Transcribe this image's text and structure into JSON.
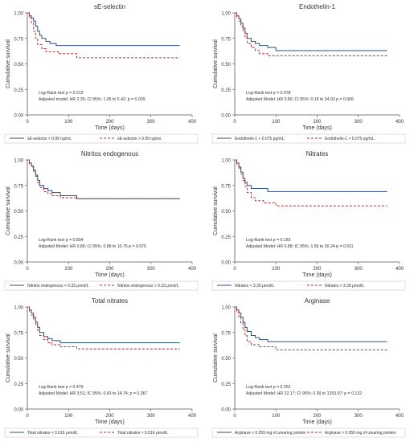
{
  "colors": {
    "series_a": "#2f4f7f",
    "series_b": "#b03030",
    "axis": "#555555",
    "text": "#333333"
  },
  "chart_data": [
    {
      "type": "line",
      "title": "sE-selectin",
      "xlabel": "Time (days)",
      "ylabel": "Cumulative survival",
      "xlim": [
        0,
        400
      ],
      "ylim": [
        0,
        1
      ],
      "xticks": [
        "0",
        "100",
        "200",
        "300",
        "400"
      ],
      "yticks": [
        "0.00",
        "0.25",
        "0.50",
        "0.75",
        "1.00"
      ],
      "annotations": [
        "Log-Rank test p = 0.213",
        "Adjusted model: HR 2.35; CI 95%: 1.05 to 5.42; p = 0.039"
      ],
      "series": [
        {
          "name": "sE-selectin < 0.99 ng/mL",
          "style": "solid",
          "x": [
            0,
            5,
            10,
            15,
            20,
            25,
            30,
            35,
            45,
            55,
            70,
            370
          ],
          "y": [
            1.0,
            0.97,
            0.95,
            0.92,
            0.87,
            0.82,
            0.78,
            0.75,
            0.72,
            0.7,
            0.68,
            0.68
          ]
        },
        {
          "name": "sE-selectin > 0.99 ng/mL",
          "style": "dashed",
          "x": [
            0,
            5,
            10,
            15,
            20,
            25,
            35,
            45,
            75,
            120,
            370
          ],
          "y": [
            1.0,
            0.95,
            0.9,
            0.82,
            0.75,
            0.69,
            0.65,
            0.62,
            0.6,
            0.56,
            0.56
          ]
        }
      ]
    },
    {
      "type": "line",
      "title": "Endothelin-1",
      "xlabel": "Time (days)",
      "ylabel": "Cumulative survival",
      "xlim": [
        0,
        400
      ],
      "ylim": [
        0,
        1
      ],
      "xticks": [
        "0",
        "100",
        "200",
        "300",
        "400"
      ],
      "yticks": [
        "0.00",
        "0.25",
        "0.50",
        "0.75",
        "1.00"
      ],
      "annotations": [
        "Log-Rank test p = 0.578",
        "Adjusted Model: HR 0.80; CI 95%: 0.18 to 34.93 p = 0.906"
      ],
      "series": [
        {
          "name": "Endothelin-1 < 0.075 pg/mL",
          "style": "solid",
          "x": [
            0,
            5,
            10,
            15,
            20,
            25,
            30,
            40,
            50,
            60,
            80,
            100,
            370
          ],
          "y": [
            1.0,
            0.97,
            0.94,
            0.9,
            0.85,
            0.8,
            0.75,
            0.72,
            0.7,
            0.68,
            0.66,
            0.63,
            0.63
          ]
        },
        {
          "name": "Endothelin-1 > 0.075 pg/mL",
          "style": "dashed",
          "x": [
            0,
            5,
            10,
            15,
            20,
            25,
            30,
            40,
            50,
            60,
            80,
            370
          ],
          "y": [
            1.0,
            0.96,
            0.92,
            0.87,
            0.82,
            0.76,
            0.7,
            0.66,
            0.63,
            0.6,
            0.58,
            0.58
          ]
        }
      ]
    },
    {
      "type": "line",
      "title": "Nitritos endogenous",
      "xlabel": "Time (days)",
      "ylabel": "Cumulative survival",
      "xlim": [
        0,
        400
      ],
      "ylim": [
        0,
        1
      ],
      "xticks": [
        "0",
        "100",
        "200",
        "300",
        "400"
      ],
      "yticks": [
        "0.00",
        "0.25",
        "0.50",
        "0.75",
        "1.00"
      ],
      "annotations": [
        "Log-Rank test p = 0.804",
        "Adjusted Model: HR 0.89; CI 95%: 0.88 to 10.75 p = 0.975"
      ],
      "series": [
        {
          "name": "Nitritos endogenous < 0.33 μmol/L",
          "style": "solid",
          "x": [
            0,
            5,
            10,
            15,
            20,
            25,
            30,
            40,
            50,
            60,
            80,
            120,
            370
          ],
          "y": [
            1.0,
            0.97,
            0.94,
            0.9,
            0.85,
            0.8,
            0.75,
            0.72,
            0.7,
            0.68,
            0.65,
            0.62,
            0.62
          ]
        },
        {
          "name": "Nitritos endogenous > 0.33 μmol/L",
          "style": "dashed",
          "x": [
            0,
            5,
            10,
            15,
            20,
            25,
            30,
            40,
            50,
            60,
            80,
            120,
            370
          ],
          "y": [
            1.0,
            0.96,
            0.93,
            0.89,
            0.84,
            0.78,
            0.73,
            0.69,
            0.67,
            0.65,
            0.63,
            0.62,
            0.62
          ]
        }
      ]
    },
    {
      "type": "line",
      "title": "Nitrates",
      "xlabel": "Time (days)",
      "ylabel": "Cumulative survival",
      "xlim": [
        0,
        400
      ],
      "ylim": [
        0,
        1
      ],
      "xticks": [
        "0",
        "100",
        "200",
        "300",
        "400"
      ],
      "yticks": [
        "0.00",
        "0.25",
        "0.50",
        "0.75",
        "1.00"
      ],
      "annotations": [
        "Log-Rank test p = 0.183",
        "Adjusted Model: HR 6.88; IC 95%: 1.56 to 30.24 p = 0.011"
      ],
      "series": [
        {
          "name": "Nitrates < 3.39 μmol/L",
          "style": "solid",
          "x": [
            0,
            5,
            10,
            15,
            20,
            25,
            30,
            40,
            80,
            370
          ],
          "y": [
            1.0,
            0.97,
            0.93,
            0.88,
            0.82,
            0.78,
            0.75,
            0.72,
            0.69,
            0.69
          ]
        },
        {
          "name": "Nitrates > 3.39 μmol/L",
          "style": "dashed",
          "x": [
            0,
            5,
            10,
            15,
            20,
            25,
            30,
            40,
            50,
            70,
            100,
            370
          ],
          "y": [
            1.0,
            0.96,
            0.92,
            0.86,
            0.8,
            0.74,
            0.68,
            0.63,
            0.6,
            0.58,
            0.55,
            0.55
          ]
        }
      ]
    },
    {
      "type": "line",
      "title": "Total nitrates",
      "xlabel": "Time (days)",
      "ylabel": "Cumulative survival",
      "xlim": [
        0,
        400
      ],
      "ylim": [
        0,
        1
      ],
      "xticks": [
        "0",
        "100",
        "200",
        "300",
        "400"
      ],
      "yticks": [
        "0.00",
        "0.25",
        "0.50",
        "0.75",
        "1.00"
      ],
      "annotations": [
        "Log-Rank test p = 0.479",
        "Adjusted Model: HR 3.51; IC 95%: 0.43 to 14.74; p = 0.367"
      ],
      "series": [
        {
          "name": "Total nitrates < 0.016 μmol/L",
          "style": "solid",
          "x": [
            0,
            5,
            10,
            15,
            20,
            25,
            30,
            40,
            50,
            60,
            80,
            370
          ],
          "y": [
            1.0,
            0.97,
            0.94,
            0.9,
            0.85,
            0.8,
            0.75,
            0.71,
            0.69,
            0.67,
            0.65,
            0.65
          ]
        },
        {
          "name": "Total nitrates > 0.016 μmol/L",
          "style": "dashed",
          "x": [
            0,
            5,
            10,
            15,
            20,
            25,
            30,
            40,
            50,
            60,
            80,
            120,
            370
          ],
          "y": [
            1.0,
            0.96,
            0.92,
            0.88,
            0.83,
            0.77,
            0.72,
            0.68,
            0.65,
            0.63,
            0.61,
            0.59,
            0.59
          ]
        }
      ]
    },
    {
      "type": "line",
      "title": "Arginase",
      "xlabel": "Time (days)",
      "ylabel": "Cumulative survival",
      "xlim": [
        0,
        400
      ],
      "ylim": [
        0,
        1
      ],
      "xticks": [
        "0",
        "100",
        "200",
        "300",
        "400"
      ],
      "yticks": [
        "0.00",
        "0.25",
        "0.50",
        "0.75",
        "1.00"
      ],
      "annotations": [
        "Log-Rank test p = 0.252",
        "Adjusted Model: HR 22.17; CI 95%: 0.39 to 1253.97; p = 0.132"
      ],
      "series": [
        {
          "name": "Arginase < 0.059 mg of urearing protein",
          "style": "solid",
          "x": [
            0,
            5,
            10,
            15,
            20,
            25,
            30,
            40,
            50,
            60,
            80,
            370
          ],
          "y": [
            1.0,
            0.97,
            0.94,
            0.9,
            0.85,
            0.8,
            0.76,
            0.72,
            0.7,
            0.68,
            0.66,
            0.66
          ]
        },
        {
          "name": "Arginase > 0.059 mg of urearing protein",
          "style": "dashed",
          "x": [
            0,
            5,
            10,
            15,
            20,
            25,
            30,
            40,
            60,
            100,
            370
          ],
          "y": [
            1.0,
            0.95,
            0.9,
            0.84,
            0.78,
            0.72,
            0.66,
            0.63,
            0.61,
            0.58,
            0.58
          ]
        }
      ]
    }
  ]
}
